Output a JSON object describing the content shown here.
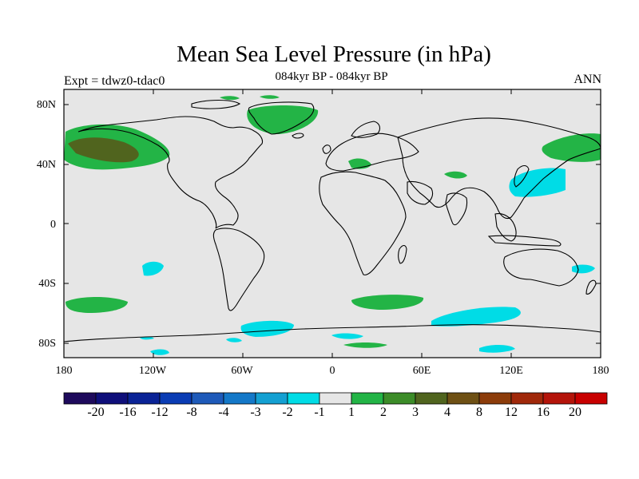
{
  "title": "Mean Sea Level Pressure (in hPa)",
  "subtitle": "084kyr BP - 084kyr BP",
  "left_label": "Expt = tdwz0-tdac0",
  "right_label": "ANN",
  "lat_labels": [
    "80N",
    "40N",
    "0",
    "40S",
    "80S"
  ],
  "lon_labels": [
    "180",
    "120W",
    "60W",
    "0",
    "60E",
    "120E",
    "180"
  ],
  "colorbar": {
    "colors": [
      "#1e0a5c",
      "#0f0f7a",
      "#0a2396",
      "#0a3cb4",
      "#1e5ab9",
      "#1478c8",
      "#14a0d2",
      "#00dce6",
      "#e6e6e6",
      "#23b446",
      "#3c8c28",
      "#50641e",
      "#6e5014",
      "#8c3c0a",
      "#a0280a",
      "#b4140a",
      "#c80000"
    ],
    "labels": [
      "-20",
      "-16",
      "-12",
      "-8",
      "-4",
      "-3",
      "-2",
      "-1",
      "1",
      "2",
      "3",
      "4",
      "8",
      "12",
      "16",
      "20"
    ]
  },
  "map": {
    "background": "#e6e6e6",
    "positive_small": "#23b446",
    "positive_mid": "#50641e",
    "negative_small": "#00dce6"
  }
}
